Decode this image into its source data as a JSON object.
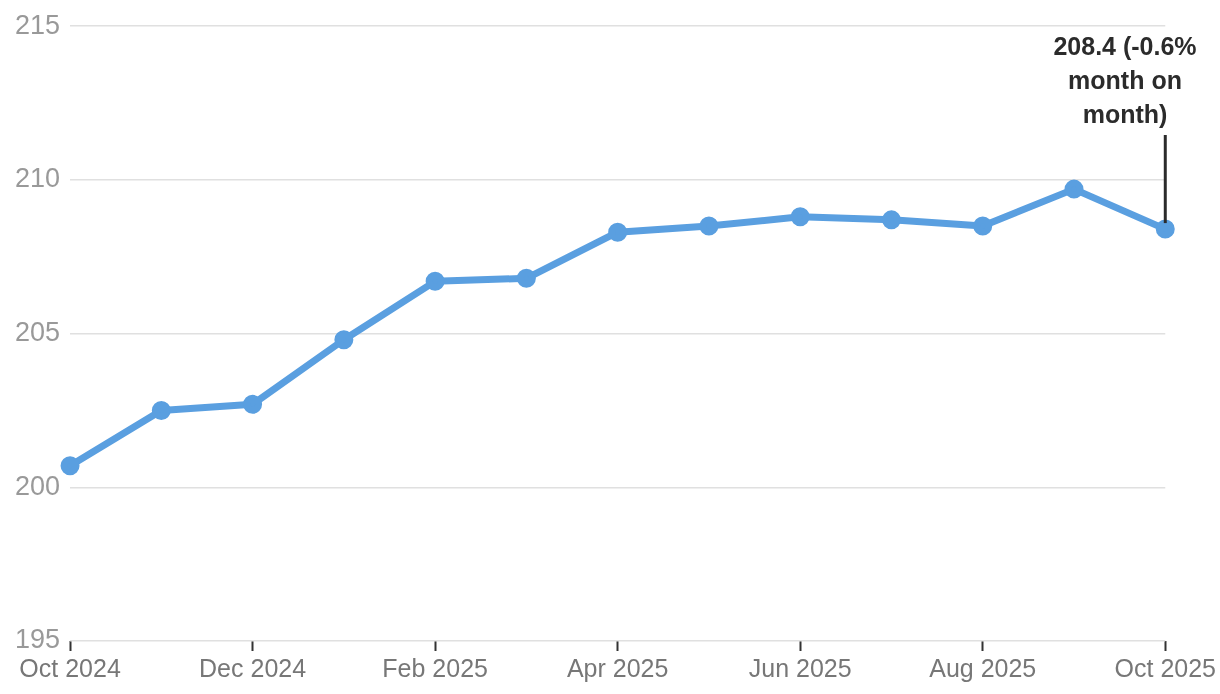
{
  "chart_data": {
    "type": "line",
    "categories": [
      "Oct 2024",
      null,
      "Dec 2024",
      null,
      "Feb 2025",
      null,
      "Apr 2025",
      null,
      "Jun 2025",
      null,
      "Aug 2025",
      null,
      "Oct 2025"
    ],
    "series": [
      {
        "color": "#5a9fe0",
        "values": [
          200.7,
          202.5,
          202.7,
          204.8,
          206.7,
          206.8,
          208.3,
          208.5,
          208.8,
          208.7,
          208.5,
          209.7,
          208.4
        ]
      }
    ],
    "ylim": [
      195,
      215
    ],
    "yticks": [
      195,
      200,
      205,
      210,
      215
    ],
    "grid": "y",
    "legend": false,
    "marker": "circle",
    "line_style": "solid",
    "annotations": [
      {
        "text": "208.4 (-0.6% month on month)",
        "x": "Oct 2025",
        "y": 208.4
      }
    ]
  }
}
